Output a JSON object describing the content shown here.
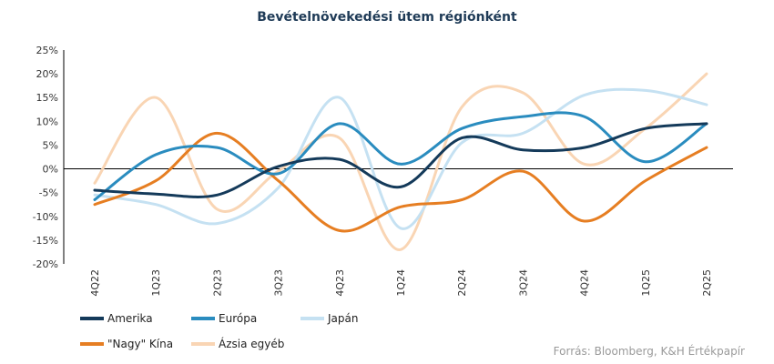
{
  "chart_data": {
    "type": "line",
    "title": "Bevételnövekedési ütem régiónként",
    "x": [
      "4Q22",
      "1Q23",
      "2Q23",
      "3Q23",
      "4Q23",
      "1Q24",
      "2Q24",
      "3Q24",
      "4Q24",
      "1Q25",
      "2Q25"
    ],
    "y_ticks": [
      "25%",
      "20%",
      "15%",
      "10%",
      "5%",
      "0%",
      "-5%",
      "-10%",
      "-15%",
      "-20%"
    ],
    "ylim": [
      -20,
      25
    ],
    "y_step": 5,
    "grid": false,
    "legend_position": "bottom-left",
    "series": [
      {
        "name": "Amerika",
        "color": "#143a5a",
        "values": [
          -4.5,
          -5.3,
          -5.5,
          0.5,
          2.0,
          -3.8,
          6.5,
          4.0,
          4.5,
          8.5,
          9.5
        ]
      },
      {
        "name": "Európa",
        "color": "#2a8cbf",
        "values": [
          -6.5,
          3.0,
          4.5,
          -1.0,
          9.5,
          1.0,
          8.5,
          11.0,
          11.0,
          1.5,
          9.5
        ]
      },
      {
        "name": "Japán",
        "color": "#c5e1f2",
        "values": [
          -5.5,
          -7.5,
          -11.5,
          -4.0,
          15.0,
          -12.5,
          5.5,
          7.5,
          15.5,
          16.5,
          13.5
        ]
      },
      {
        "name": "\"Nagy\" Kína",
        "color": "#e67e22",
        "values": [
          -7.5,
          -2.5,
          7.5,
          -2.5,
          -13.0,
          -8.0,
          -6.5,
          -0.5,
          -11.0,
          -2.5,
          4.5
        ]
      },
      {
        "name": "Ázsia egyéb",
        "color": "#f9d5b4",
        "values": [
          -3.0,
          15.0,
          -8.5,
          -0.5,
          6.5,
          -17.0,
          13.0,
          16.0,
          1.0,
          8.5,
          20.0
        ]
      }
    ],
    "source": "Forrás: Bloomberg, K&H Értékpapír"
  }
}
